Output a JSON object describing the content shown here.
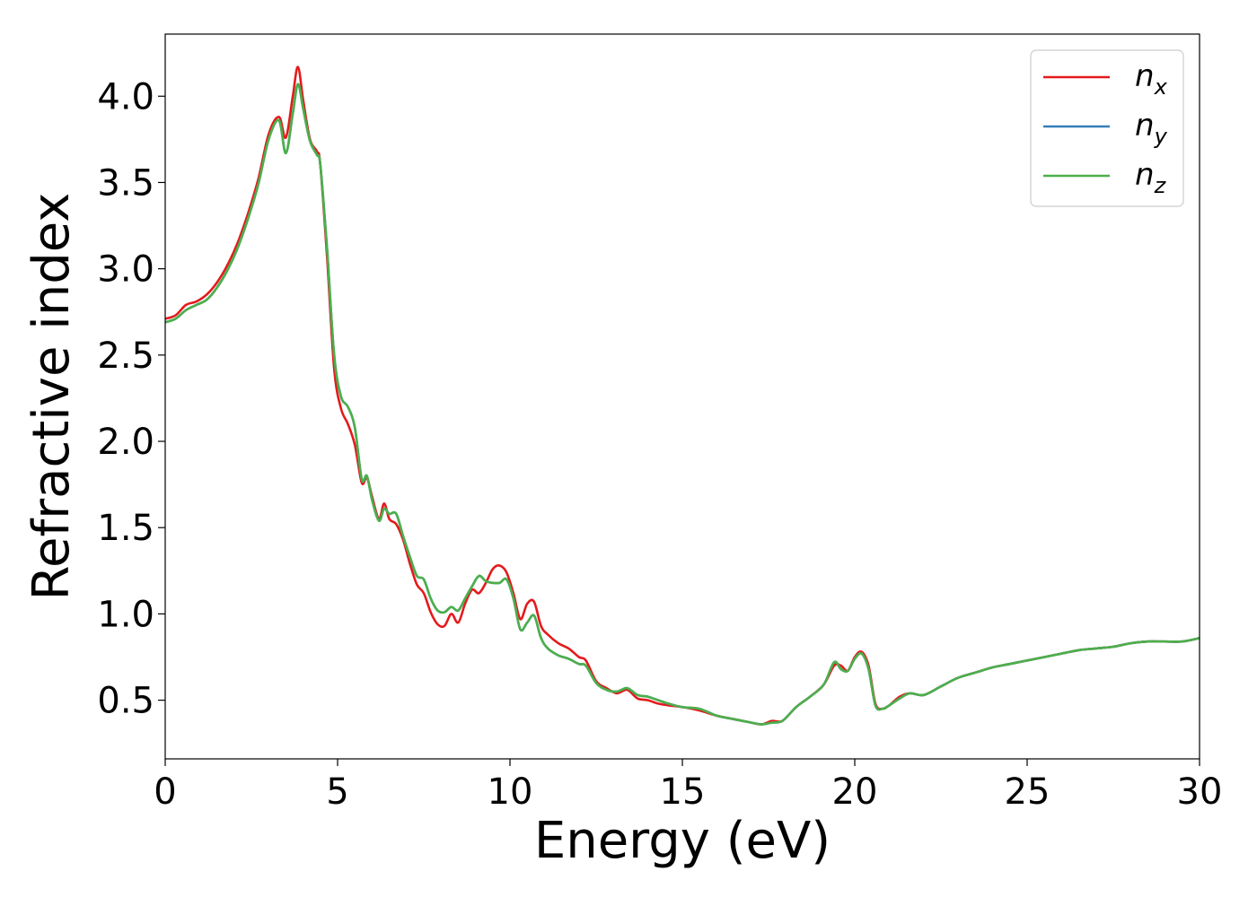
{
  "chart_data": {
    "type": "line",
    "title": "",
    "xlabel": "Energy (eV)",
    "ylabel": "Refractive index",
    "xlim": [
      0,
      30
    ],
    "ylim": [
      0.16,
      4.36
    ],
    "xticks": [
      0,
      5,
      10,
      15,
      20,
      25,
      30
    ],
    "yticks": [
      0.5,
      1.0,
      1.5,
      2.0,
      2.5,
      3.0,
      3.5,
      4.0
    ],
    "xtick_labels": [
      "0",
      "5",
      "10",
      "15",
      "20",
      "25",
      "30"
    ],
    "ytick_labels": [
      "0.5",
      "1.0",
      "1.5",
      "2.0",
      "2.5",
      "3.0",
      "3.5",
      "4.0"
    ],
    "grid": false,
    "legend_position": "top-right",
    "series": [
      {
        "name": "n",
        "subscript": "x",
        "color": "#e41a1c",
        "x": [
          0,
          0.3,
          0.6,
          0.9,
          1.2,
          1.5,
          1.8,
          2.1,
          2.4,
          2.7,
          3.0,
          3.3,
          3.5,
          3.7,
          3.85,
          4.0,
          4.2,
          4.4,
          4.5,
          4.7,
          4.9,
          5.1,
          5.3,
          5.5,
          5.7,
          5.85,
          6.0,
          6.2,
          6.35,
          6.5,
          6.7,
          6.9,
          7.1,
          7.3,
          7.5,
          7.7,
          7.9,
          8.1,
          8.3,
          8.5,
          8.7,
          8.9,
          9.1,
          9.3,
          9.5,
          9.7,
          9.9,
          10.1,
          10.3,
          10.5,
          10.7,
          10.9,
          11.1,
          11.4,
          11.7,
          12.0,
          12.2,
          12.5,
          12.8,
          13.1,
          13.4,
          13.7,
          14.0,
          14.3,
          14.6,
          15.0,
          15.5,
          16.0,
          16.5,
          17.0,
          17.3,
          17.6,
          17.9,
          18.3,
          18.7,
          19.1,
          19.4,
          19.6,
          19.8,
          20.0,
          20.2,
          20.4,
          20.6,
          20.8,
          21.0,
          21.3,
          21.6,
          22.0,
          22.5,
          23.0,
          23.5,
          24.0,
          24.5,
          25.0,
          25.5,
          26.0,
          26.5,
          27.0,
          27.5,
          28.0,
          28.5,
          29.0,
          29.5,
          30.0
        ],
        "y": [
          2.71,
          2.73,
          2.79,
          2.81,
          2.85,
          2.92,
          3.02,
          3.15,
          3.32,
          3.52,
          3.78,
          3.88,
          3.76,
          4.0,
          4.17,
          3.98,
          3.75,
          3.68,
          3.6,
          3.05,
          2.42,
          2.19,
          2.1,
          1.98,
          1.76,
          1.79,
          1.68,
          1.55,
          1.64,
          1.55,
          1.52,
          1.43,
          1.29,
          1.17,
          1.12,
          1.01,
          0.94,
          0.93,
          1.0,
          0.95,
          1.06,
          1.14,
          1.12,
          1.18,
          1.26,
          1.28,
          1.24,
          1.12,
          0.97,
          1.06,
          1.07,
          0.93,
          0.88,
          0.83,
          0.8,
          0.75,
          0.73,
          0.61,
          0.57,
          0.54,
          0.56,
          0.51,
          0.5,
          0.48,
          0.47,
          0.46,
          0.44,
          0.41,
          0.39,
          0.37,
          0.36,
          0.38,
          0.38,
          0.46,
          0.52,
          0.59,
          0.7,
          0.7,
          0.67,
          0.75,
          0.78,
          0.7,
          0.48,
          0.45,
          0.47,
          0.52,
          0.54,
          0.53,
          0.58,
          0.63,
          0.66,
          0.69,
          0.71,
          0.73,
          0.75,
          0.77,
          0.79,
          0.8,
          0.81,
          0.83,
          0.84,
          0.84,
          0.84,
          0.86
        ]
      },
      {
        "name": "n",
        "subscript": "y",
        "color": "#377eb8",
        "x": [
          0,
          0.3,
          0.6,
          0.9,
          1.2,
          1.5,
          1.8,
          2.1,
          2.4,
          2.7,
          3.0,
          3.3,
          3.5,
          3.7,
          3.85,
          4.0,
          4.2,
          4.4,
          4.5,
          4.7,
          4.9,
          5.1,
          5.3,
          5.5,
          5.7,
          5.85,
          6.0,
          6.2,
          6.35,
          6.5,
          6.7,
          6.9,
          7.1,
          7.3,
          7.5,
          7.7,
          7.9,
          8.1,
          8.3,
          8.5,
          8.7,
          8.9,
          9.1,
          9.3,
          9.5,
          9.7,
          9.9,
          10.1,
          10.3,
          10.5,
          10.7,
          10.9,
          11.1,
          11.4,
          11.7,
          12.0,
          12.2,
          12.5,
          12.8,
          13.1,
          13.4,
          13.7,
          14.0,
          14.3,
          14.6,
          15.0,
          15.5,
          16.0,
          16.5,
          17.0,
          17.3,
          17.6,
          17.9,
          18.3,
          18.7,
          19.1,
          19.4,
          19.6,
          19.8,
          20.0,
          20.2,
          20.4,
          20.6,
          20.8,
          21.0,
          21.3,
          21.6,
          22.0,
          22.5,
          23.0,
          23.5,
          24.0,
          24.5,
          25.0,
          25.5,
          26.0,
          26.5,
          27.0,
          27.5,
          28.0,
          28.5,
          29.0,
          29.5,
          30.0
        ],
        "y": [
          2.69,
          2.71,
          2.76,
          2.79,
          2.82,
          2.89,
          2.99,
          3.12,
          3.29,
          3.49,
          3.75,
          3.86,
          3.67,
          3.9,
          4.07,
          3.93,
          3.74,
          3.66,
          3.6,
          3.1,
          2.5,
          2.26,
          2.2,
          2.08,
          1.78,
          1.8,
          1.66,
          1.54,
          1.61,
          1.58,
          1.58,
          1.45,
          1.33,
          1.22,
          1.2,
          1.09,
          1.02,
          1.01,
          1.04,
          1.02,
          1.09,
          1.16,
          1.22,
          1.19,
          1.18,
          1.18,
          1.2,
          1.09,
          0.91,
          0.95,
          0.99,
          0.86,
          0.8,
          0.76,
          0.74,
          0.71,
          0.7,
          0.6,
          0.56,
          0.55,
          0.57,
          0.53,
          0.52,
          0.5,
          0.48,
          0.46,
          0.45,
          0.41,
          0.39,
          0.37,
          0.36,
          0.37,
          0.38,
          0.46,
          0.52,
          0.59,
          0.72,
          0.68,
          0.67,
          0.74,
          0.77,
          0.68,
          0.47,
          0.45,
          0.47,
          0.51,
          0.54,
          0.53,
          0.58,
          0.63,
          0.66,
          0.69,
          0.71,
          0.73,
          0.75,
          0.77,
          0.79,
          0.8,
          0.81,
          0.83,
          0.84,
          0.84,
          0.84,
          0.86
        ]
      },
      {
        "name": "n",
        "subscript": "z",
        "color": "#4daf4a",
        "x": [
          0,
          0.3,
          0.6,
          0.9,
          1.2,
          1.5,
          1.8,
          2.1,
          2.4,
          2.7,
          3.0,
          3.3,
          3.5,
          3.7,
          3.85,
          4.0,
          4.2,
          4.4,
          4.5,
          4.7,
          4.9,
          5.1,
          5.3,
          5.5,
          5.7,
          5.85,
          6.0,
          6.2,
          6.35,
          6.5,
          6.7,
          6.9,
          7.1,
          7.3,
          7.5,
          7.7,
          7.9,
          8.1,
          8.3,
          8.5,
          8.7,
          8.9,
          9.1,
          9.3,
          9.5,
          9.7,
          9.9,
          10.1,
          10.3,
          10.5,
          10.7,
          10.9,
          11.1,
          11.4,
          11.7,
          12.0,
          12.2,
          12.5,
          12.8,
          13.1,
          13.4,
          13.7,
          14.0,
          14.3,
          14.6,
          15.0,
          15.5,
          16.0,
          16.5,
          17.0,
          17.3,
          17.6,
          17.9,
          18.3,
          18.7,
          19.1,
          19.4,
          19.6,
          19.8,
          20.0,
          20.2,
          20.4,
          20.6,
          20.8,
          21.0,
          21.3,
          21.6,
          22.0,
          22.5,
          23.0,
          23.5,
          24.0,
          24.5,
          25.0,
          25.5,
          26.0,
          26.5,
          27.0,
          27.5,
          28.0,
          28.5,
          29.0,
          29.5,
          30.0
        ],
        "y": [
          2.69,
          2.71,
          2.76,
          2.79,
          2.82,
          2.89,
          2.99,
          3.12,
          3.29,
          3.49,
          3.75,
          3.86,
          3.67,
          3.9,
          4.07,
          3.93,
          3.74,
          3.66,
          3.6,
          3.1,
          2.5,
          2.26,
          2.2,
          2.08,
          1.78,
          1.8,
          1.66,
          1.54,
          1.61,
          1.58,
          1.58,
          1.45,
          1.33,
          1.22,
          1.2,
          1.09,
          1.02,
          1.01,
          1.04,
          1.02,
          1.09,
          1.16,
          1.22,
          1.19,
          1.18,
          1.18,
          1.2,
          1.09,
          0.91,
          0.95,
          0.99,
          0.86,
          0.8,
          0.76,
          0.74,
          0.71,
          0.7,
          0.6,
          0.56,
          0.55,
          0.57,
          0.53,
          0.52,
          0.5,
          0.48,
          0.46,
          0.45,
          0.41,
          0.39,
          0.37,
          0.36,
          0.37,
          0.38,
          0.46,
          0.52,
          0.59,
          0.72,
          0.68,
          0.67,
          0.74,
          0.77,
          0.68,
          0.47,
          0.45,
          0.47,
          0.51,
          0.54,
          0.53,
          0.58,
          0.63,
          0.66,
          0.69,
          0.71,
          0.73,
          0.75,
          0.77,
          0.79,
          0.8,
          0.81,
          0.83,
          0.84,
          0.84,
          0.84,
          0.86
        ]
      }
    ]
  }
}
